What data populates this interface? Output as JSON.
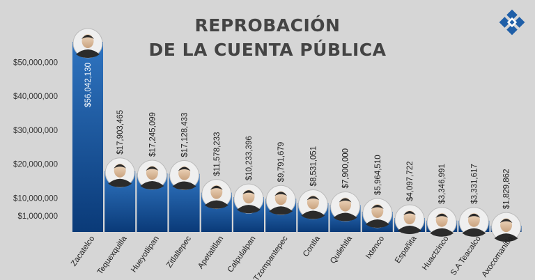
{
  "header": {
    "title_line1": "REPROBACIÓN",
    "title_line2": "DE LA CUENTA PÚBLICA"
  },
  "colors": {
    "background": "#d6d6d6",
    "bar_top": "#2f74c0",
    "bar_bottom": "#0a3a78",
    "text": "#333333",
    "logo": "#1f5fa8"
  },
  "chart_data": {
    "type": "bar",
    "categories": [
      "Zacatelco",
      "Tequexquitla",
      "Hueyotlipan",
      "Zitlaltepec",
      "Apetatitlan",
      "Calpulalpan",
      "Tzompantepec",
      "Contla",
      "Quilehtla",
      "Ixtenco",
      "Españita",
      "Huactzinco",
      "S.A Teacalco",
      "Axocomanitla"
    ],
    "values": [
      56042130,
      17903465,
      17245099,
      17128433,
      11578233,
      10233396,
      9791679,
      8531051,
      7900000,
      5964510,
      4097722,
      3346991,
      3331617,
      1829862
    ],
    "value_labels": [
      "$56,042,130",
      "$17,903,465",
      "$17,245,099",
      "$17,128,433",
      "$11,578,233",
      "$10,233,396",
      "$9,791,679",
      "$8,531,051",
      "$7,900,000",
      "$5,964,510",
      "$4,097,722",
      "$3,346,991",
      "$3,331,617",
      "$1,829,862"
    ],
    "y_ticks": [
      {
        "value": 50000000,
        "label": "$50,000,000"
      },
      {
        "value": 40000000,
        "label": "$40,000,000"
      },
      {
        "value": 30000000,
        "label": "$30,000,000"
      },
      {
        "value": 20000000,
        "label": "$20,000,000"
      },
      {
        "value": 10000000,
        "label": "$10,000,000"
      },
      {
        "value": 1000000,
        "label": "$1,000,000"
      }
    ],
    "ylim": [
      0,
      56042130
    ],
    "grid": false,
    "legend": "none"
  }
}
